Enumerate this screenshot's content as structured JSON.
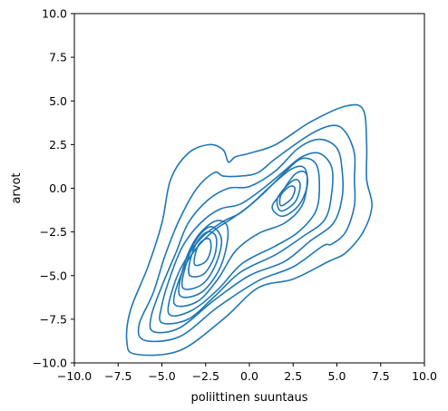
{
  "chart_data": {
    "type": "contour",
    "title": "",
    "xlabel": "poliittinen suuntaus",
    "ylabel": "arvot",
    "xlim": [
      -10,
      10
    ],
    "ylim": [
      -10,
      10
    ],
    "xticks": [
      -10.0,
      -7.5,
      -5.0,
      -2.5,
      0.0,
      2.5,
      5.0,
      7.5,
      10.0
    ],
    "yticks": [
      -10.0,
      -7.5,
      -5.0,
      -2.5,
      0.0,
      2.5,
      5.0,
      7.5,
      10.0
    ],
    "xtick_labels": [
      "−10.0",
      "−7.5",
      "−5.0",
      "−2.5",
      "0.0",
      "2.5",
      "5.0",
      "7.5",
      "10.0"
    ],
    "ytick_labels": [
      "−10.0",
      "−7.5",
      "−5.0",
      "−2.5",
      "0.0",
      "2.5",
      "5.0",
      "7.5",
      "10.0"
    ],
    "line_color": "#1f77b4",
    "grid": false,
    "legend": "none",
    "levels": [
      [
        [
          -6.5,
          -9.5
        ],
        [
          -4,
          -9.3
        ],
        [
          -1.5,
          -7.5
        ],
        [
          0.5,
          -5.7
        ],
        [
          2.5,
          -5.2
        ],
        [
          4.5,
          -4.2
        ],
        [
          5.5,
          -3.7
        ],
        [
          6.5,
          -2.5
        ],
        [
          7,
          -1
        ],
        [
          6.7,
          0.5
        ],
        [
          6.7,
          2.5
        ],
        [
          6.5,
          4.5
        ],
        [
          5.5,
          4.7
        ],
        [
          3.5,
          3.8
        ],
        [
          1.5,
          2.5
        ],
        [
          0,
          2
        ],
        [
          -0.8,
          1.8
        ],
        [
          -1.2,
          1.5
        ],
        [
          -1.5,
          2.2
        ],
        [
          -2.3,
          2.5
        ],
        [
          -3.5,
          2
        ],
        [
          -4.5,
          0.5
        ],
        [
          -5,
          -2
        ],
        [
          -5.8,
          -4.5
        ],
        [
          -6.8,
          -7
        ],
        [
          -7,
          -8.8
        ]
      ],
      [
        [
          -6,
          -8.7
        ],
        [
          -4,
          -8.5
        ],
        [
          -1.8,
          -6.8
        ],
        [
          0.5,
          -5.3
        ],
        [
          2.5,
          -4.5
        ],
        [
          4.2,
          -3.3
        ],
        [
          4.7,
          -3.2
        ],
        [
          5.5,
          -2.5
        ],
        [
          6,
          -1
        ],
        [
          6,
          0.5
        ],
        [
          6,
          2
        ],
        [
          5.5,
          3.2
        ],
        [
          4.8,
          3.6
        ],
        [
          3.5,
          3.1
        ],
        [
          1.5,
          1.7
        ],
        [
          0.5,
          0.9
        ],
        [
          -0.5,
          0.7
        ],
        [
          -1.5,
          0.7
        ],
        [
          -2,
          0.9
        ],
        [
          -3,
          0
        ],
        [
          -4,
          -1.8
        ],
        [
          -4.8,
          -3.8
        ],
        [
          -5.5,
          -6
        ],
        [
          -6.3,
          -7.8
        ]
      ],
      [
        [
          -5.5,
          -8.2
        ],
        [
          -4,
          -8
        ],
        [
          -2,
          -6.4
        ],
        [
          0,
          -5
        ],
        [
          2,
          -4.2
        ],
        [
          3.5,
          -3
        ],
        [
          4.8,
          -2
        ],
        [
          5.3,
          -0.5
        ],
        [
          5.3,
          1
        ],
        [
          5,
          2.3
        ],
        [
          4,
          2.8
        ],
        [
          2.8,
          2.3
        ],
        [
          1.5,
          1
        ],
        [
          0,
          0.1
        ],
        [
          -1.2,
          0
        ],
        [
          -2.4,
          -0.7
        ],
        [
          -3.5,
          -2
        ],
        [
          -4.2,
          -3.7
        ],
        [
          -5,
          -5.6
        ],
        [
          -5.6,
          -7.3
        ]
      ],
      [
        [
          -5,
          -7.7
        ],
        [
          -3.5,
          -7.5
        ],
        [
          -2,
          -6.2
        ],
        [
          -0.5,
          -4.8
        ],
        [
          1.5,
          -3.8
        ],
        [
          3,
          -2.8
        ],
        [
          4.3,
          -1.8
        ],
        [
          4.7,
          -0.3
        ],
        [
          4.7,
          1.2
        ],
        [
          4,
          2
        ],
        [
          3,
          1.8
        ],
        [
          2,
          1
        ],
        [
          0.8,
          0
        ],
        [
          -0.5,
          -0.9
        ],
        [
          -1.7,
          -1.2
        ],
        [
          -2.8,
          -2
        ],
        [
          -3.8,
          -3.3
        ],
        [
          -4.5,
          -5
        ],
        [
          -5,
          -6.7
        ]
      ],
      [
        [
          -4.6,
          -7.2
        ],
        [
          -3.3,
          -7
        ],
        [
          -1.8,
          -5.8
        ],
        [
          -0.4,
          -4.3
        ],
        [
          1.5,
          -3.3
        ],
        [
          2.8,
          -2.5
        ],
        [
          3.8,
          -1.3
        ],
        [
          4,
          0.2
        ],
        [
          3.8,
          1.4
        ],
        [
          3,
          1.7
        ],
        [
          2,
          0.9
        ],
        [
          0.8,
          -0.3
        ],
        [
          -0.5,
          -1.4
        ],
        [
          -1.5,
          -1.9
        ],
        [
          -2.7,
          -2.8
        ],
        [
          -3.6,
          -4
        ],
        [
          -4.3,
          -5.5
        ]
      ],
      [
        [
          -4.3,
          -6.6
        ],
        [
          -3,
          -6.5
        ],
        [
          -1.8,
          -5.2
        ],
        [
          -0.8,
          -3.6
        ],
        [
          0.5,
          -2.6
        ],
        [
          2,
          -2
        ],
        [
          3,
          -1
        ],
        [
          3.3,
          0.4
        ],
        [
          3.1,
          1.2
        ],
        [
          2.4,
          1.1
        ],
        [
          1.3,
          0.2
        ],
        [
          0,
          -1
        ],
        [
          -1.1,
          -1.8
        ],
        [
          -2,
          -2.4
        ],
        [
          -3,
          -3.4
        ],
        [
          -3.8,
          -4.7
        ]
      ],
      [
        [
          -4,
          -6.1
        ],
        [
          -2.8,
          -6
        ],
        [
          -1.8,
          -4.8
        ],
        [
          -1.3,
          -3.3
        ],
        [
          -1.3,
          -2.1
        ],
        [
          -2,
          -1.9
        ],
        [
          -3,
          -2.8
        ],
        [
          -3.7,
          -4.3
        ]
      ],
      [
        [
          -3.8,
          -5.7
        ],
        [
          -2.7,
          -5.5
        ],
        [
          -1.9,
          -4.3
        ],
        [
          -1.6,
          -2.9
        ],
        [
          -2.2,
          -2.2
        ],
        [
          -3,
          -2.9
        ],
        [
          -3.6,
          -4.3
        ]
      ],
      [
        [
          -3.4,
          -5
        ],
        [
          -2.6,
          -4.9
        ],
        [
          -2,
          -3.9
        ],
        [
          -1.9,
          -2.8
        ],
        [
          -2.4,
          -2.5
        ],
        [
          -3,
          -3.1
        ],
        [
          -3.4,
          -4.2
        ]
      ],
      [
        [
          -3.1,
          -4.4
        ],
        [
          -2.5,
          -4.2
        ],
        [
          -2.2,
          -3.5
        ],
        [
          -2.3,
          -2.9
        ],
        [
          -2.8,
          -3.1
        ],
        [
          -3.1,
          -3.8
        ]
      ],
      [
        [
          1.9,
          -1.6
        ],
        [
          2.8,
          -1
        ],
        [
          3.3,
          0.1
        ],
        [
          3.2,
          0.9
        ],
        [
          2.6,
          0.8
        ],
        [
          1.8,
          -0.3
        ],
        [
          1.3,
          -1.1
        ]
      ],
      [
        [
          1.8,
          -1.3
        ],
        [
          2.6,
          -0.8
        ],
        [
          2.9,
          0.1
        ],
        [
          2.7,
          0.5
        ],
        [
          2.2,
          0.2
        ],
        [
          1.6,
          -0.6
        ]
      ],
      [
        [
          1.8,
          -1
        ],
        [
          2.4,
          -0.6
        ],
        [
          2.6,
          0
        ],
        [
          2.3,
          0.1
        ],
        [
          1.8,
          -0.4
        ]
      ]
    ]
  }
}
